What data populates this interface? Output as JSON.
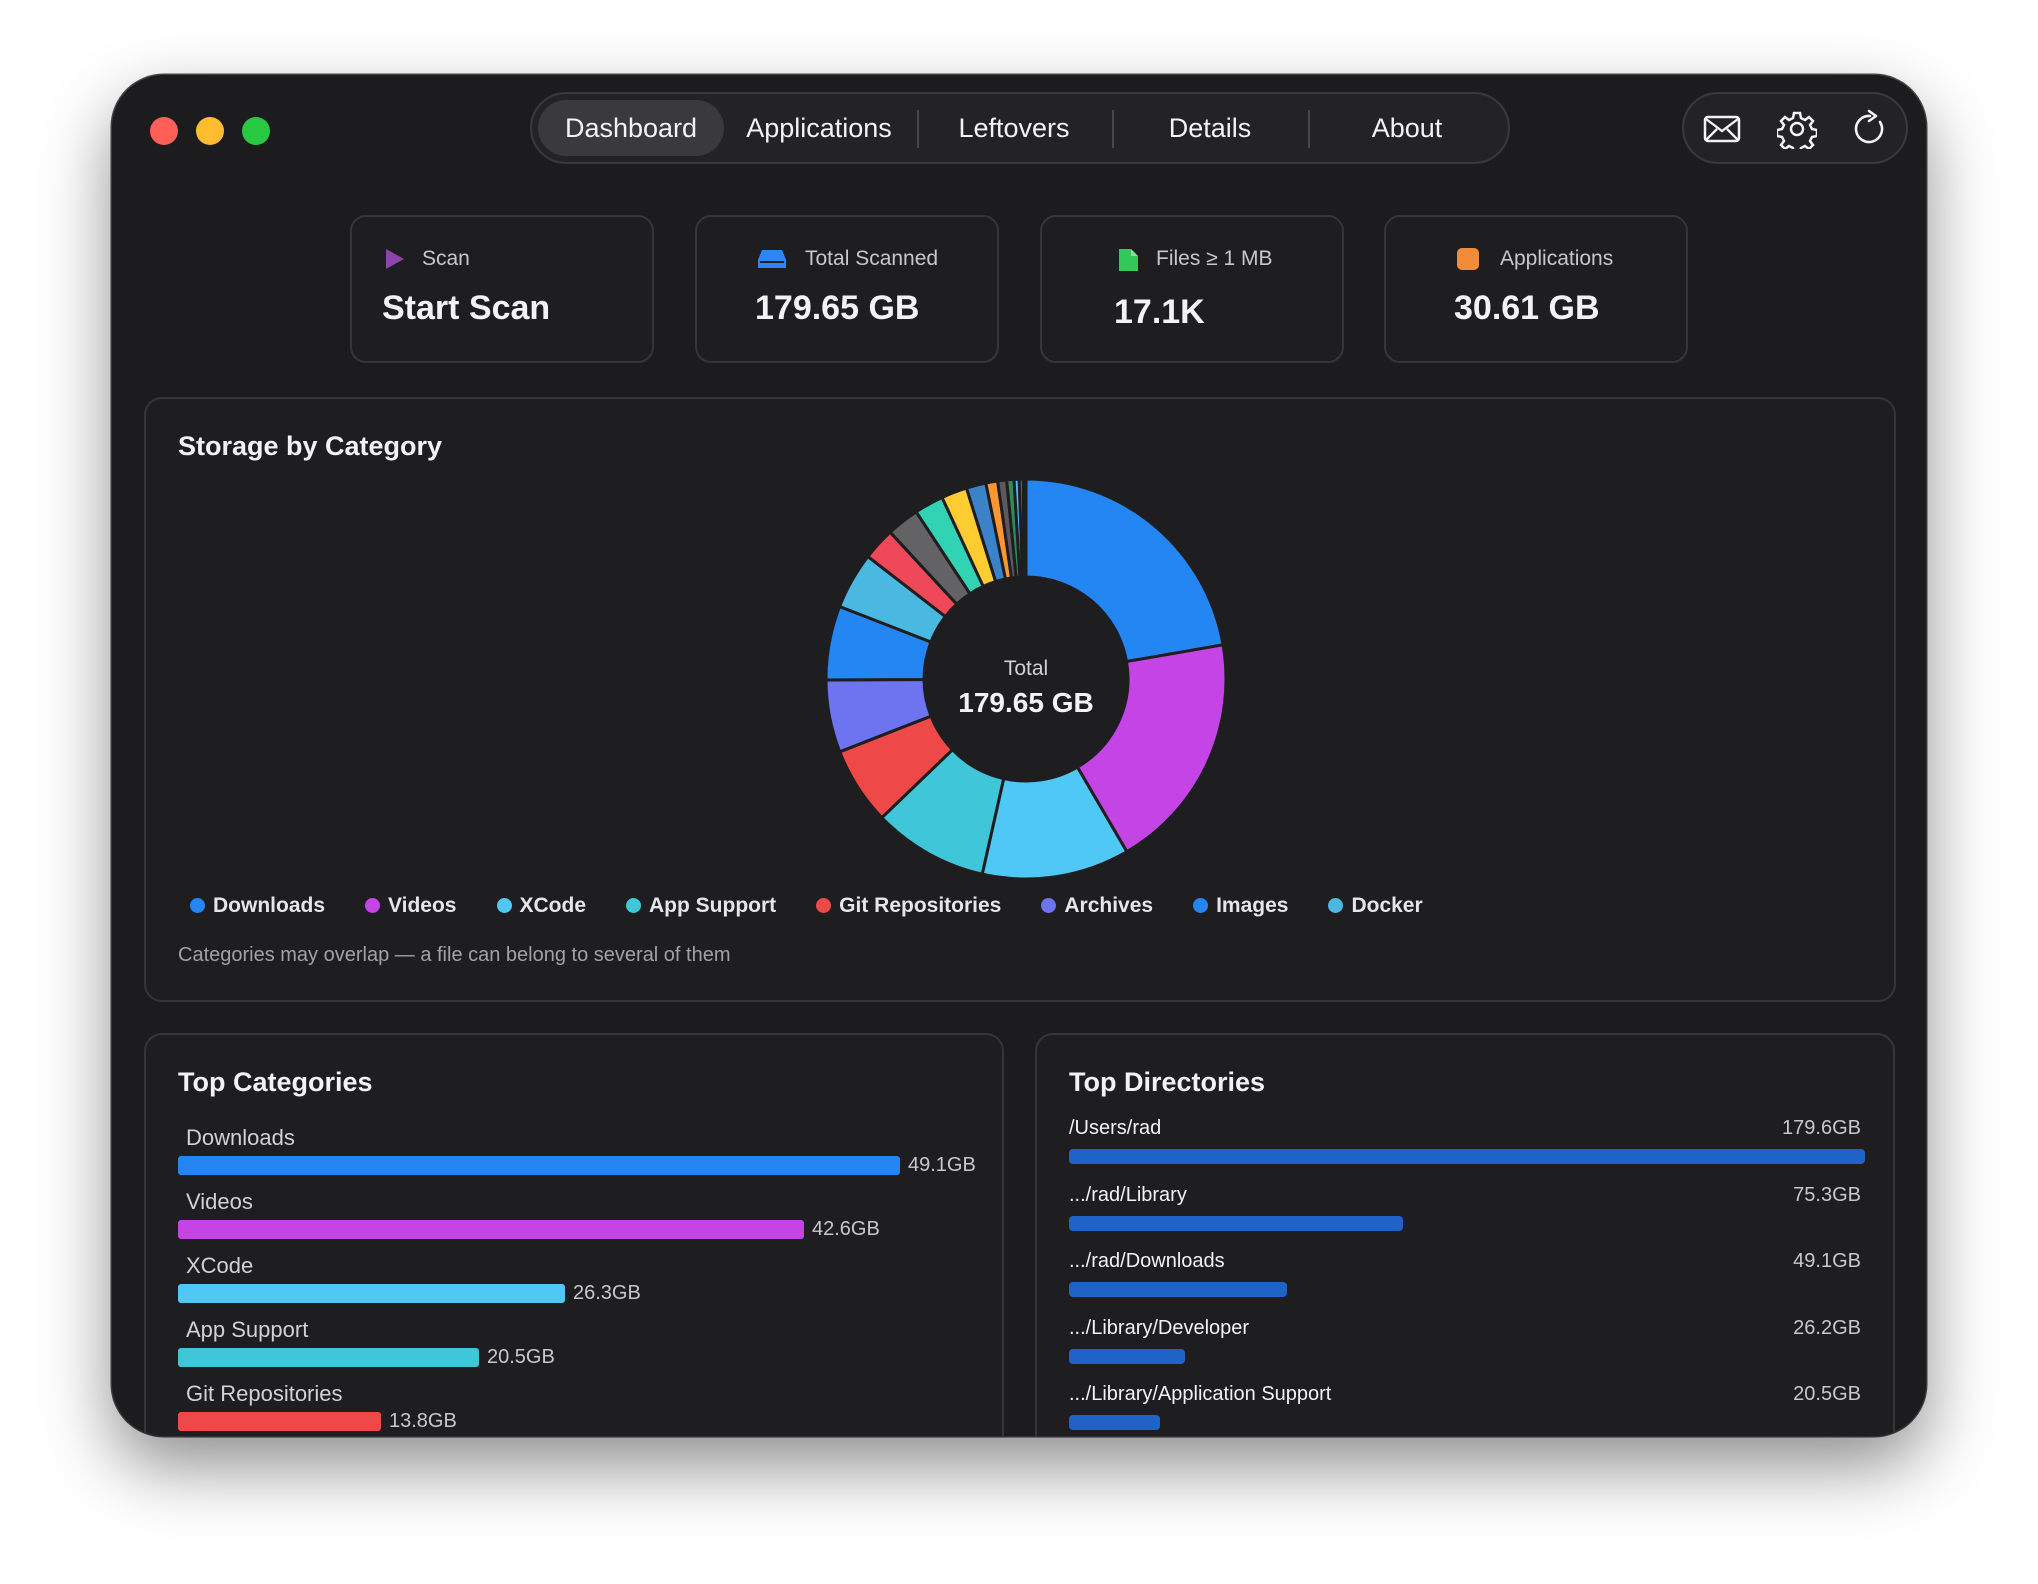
{
  "tabs": [
    "Dashboard",
    "Applications",
    "Leftovers",
    "Details",
    "About"
  ],
  "active_tab": "Dashboard",
  "toolbar": {
    "icons": [
      "mail-icon",
      "gear-icon",
      "refresh-icon"
    ]
  },
  "cards": [
    {
      "label": "Scan",
      "value": "Start Scan",
      "icon": "play-icon",
      "color": "#8e44ad"
    },
    {
      "label": "Total Scanned",
      "value": "179.65 GB",
      "icon": "drive-icon",
      "color": "#2e86f5"
    },
    {
      "label": "Files ≥ 1 MB",
      "value": "17.1K",
      "icon": "file-icon",
      "color": "#34c759"
    },
    {
      "label": "Applications",
      "value": "30.61 GB",
      "icon": "app-icon",
      "color": "#f28c38"
    }
  ],
  "storage": {
    "title": "Storage by Category",
    "center_label": "Total",
    "center_value": "179.65 GB",
    "note": "Categories may overlap — a file can belong to several of them",
    "legend": [
      {
        "name": "Downloads",
        "color": "#2386f2"
      },
      {
        "name": "Videos",
        "color": "#c544e6"
      },
      {
        "name": "XCode",
        "color": "#4fc8f5"
      },
      {
        "name": "App Support",
        "color": "#3fc6d8"
      },
      {
        "name": "Git Repositories",
        "color": "#ef4848"
      },
      {
        "name": "Archives",
        "color": "#6c74f0"
      },
      {
        "name": "Images",
        "color": "#2386f2"
      },
      {
        "name": "Docker",
        "color": "#4ab8e0"
      }
    ]
  },
  "chart_data": {
    "type": "pie",
    "title": "Storage by Category",
    "slices": [
      {
        "label": "Downloads",
        "value": 49.1,
        "color": "#2386f2"
      },
      {
        "label": "Videos",
        "value": 42.6,
        "color": "#c544e6"
      },
      {
        "label": "XCode",
        "value": 26.3,
        "color": "#4fc8f5"
      },
      {
        "label": "App Support",
        "value": 20.5,
        "color": "#3fc6d8"
      },
      {
        "label": "Git Repositories",
        "value": 13.8,
        "color": "#ef4848"
      },
      {
        "label": "Archives",
        "value": 12.9,
        "color": "#6c74f0"
      },
      {
        "label": "Images",
        "value": 13.2,
        "color": "#2386f2"
      },
      {
        "label": "Docker",
        "value": 10.1,
        "color": "#4ab8e0"
      },
      {
        "label": "",
        "value": 5.8,
        "color": "#ef4858"
      },
      {
        "label": "",
        "value": 5.8,
        "color": "#636366"
      },
      {
        "label": "",
        "value": 5.2,
        "color": "#32d2b4"
      },
      {
        "label": "",
        "value": 4.6,
        "color": "#ffcc32"
      },
      {
        "label": "",
        "value": 3.5,
        "color": "#3c82c8"
      },
      {
        "label": "",
        "value": 2.1,
        "color": "#ff9632"
      },
      {
        "label": "",
        "value": 1.6,
        "color": "#5a5a5e"
      },
      {
        "label": "",
        "value": 1.3,
        "color": "#2e8b57"
      },
      {
        "label": "",
        "value": 0.9,
        "color": "#4db8ff"
      },
      {
        "label": "",
        "value": 0.7,
        "color": "#7a6cf0"
      },
      {
        "label": "",
        "value": 0.5,
        "color": "#e04fa0"
      }
    ]
  },
  "top_categories": {
    "title": "Top Categories",
    "max": 49.1,
    "rows": [
      {
        "label": "Downloads",
        "value": 49.1,
        "value_text": "49.1GB",
        "color": "#2386f2"
      },
      {
        "label": "Videos",
        "value": 42.6,
        "value_text": "42.6GB",
        "color": "#c544e6"
      },
      {
        "label": "XCode",
        "value": 26.3,
        "value_text": "26.3GB",
        "color": "#4fc8f5"
      },
      {
        "label": "App Support",
        "value": 20.5,
        "value_text": "20.5GB",
        "color": "#3fc6d8"
      },
      {
        "label": "Git Repositories",
        "value": 13.8,
        "value_text": "13.8GB",
        "color": "#ef4848"
      }
    ]
  },
  "top_directories": {
    "title": "Top Directories",
    "max": 179.6,
    "rows": [
      {
        "path": "/Users/rad",
        "value": 179.6,
        "value_text": "179.6GB"
      },
      {
        "path": ".../rad/Library",
        "value": 75.3,
        "value_text": "75.3GB"
      },
      {
        "path": ".../rad/Downloads",
        "value": 49.1,
        "value_text": "49.1GB"
      },
      {
        "path": ".../Library/Developer",
        "value": 26.2,
        "value_text": "26.2GB"
      },
      {
        "path": ".../Library/Application Support",
        "value": 20.5,
        "value_text": "20.5GB"
      }
    ]
  }
}
